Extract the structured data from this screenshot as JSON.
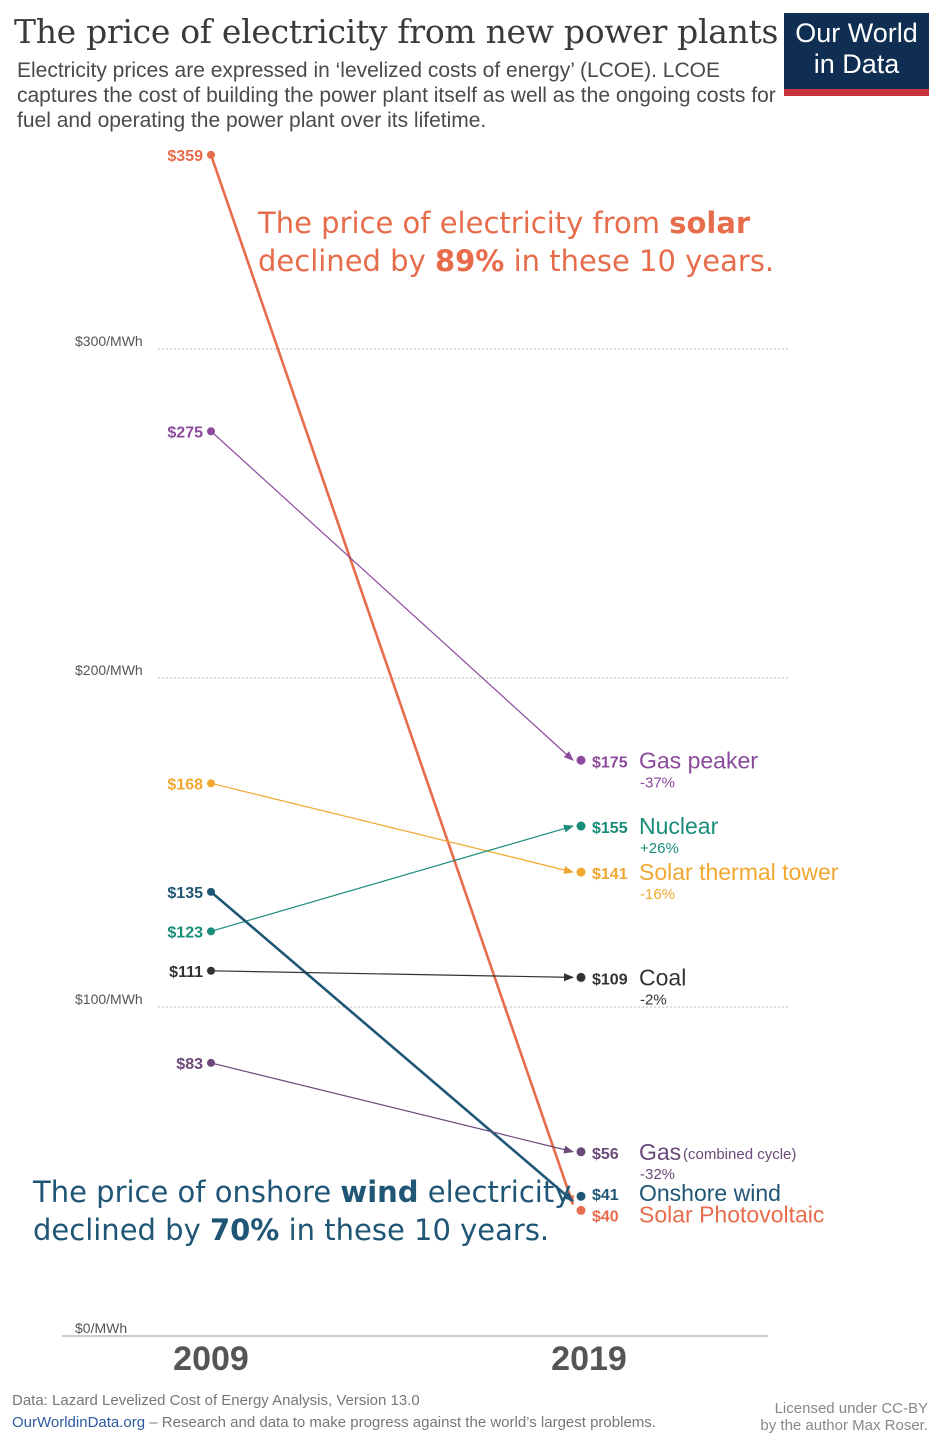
{
  "header": {
    "title": "The price of electricity from new power plants",
    "subtitle": "Electricity prices are expressed in ‘levelized costs of energy’ (LCOE). LCOE captures the cost of building the power plant itself as well as the ongoing costs for fuel and operating the power plant over its lifetime.",
    "logo_line1": "Our World",
    "logo_line2": "in Data"
  },
  "annotations": {
    "solar": {
      "pre": "The price of electricity from ",
      "bold1": "solar",
      "mid": "declined by ",
      "bold2": "89%",
      "post": " in these 10 years."
    },
    "wind": {
      "pre": "The price of onshore ",
      "bold1": "wind",
      "mid1": " electricity",
      "mid": "declined by ",
      "bold2": "70%",
      "post": " in these 10 years."
    }
  },
  "footer": {
    "source": "Data: Lazard Levelized Cost of Energy Analysis, Version 13.0",
    "site": "OurWorldinData.org",
    "tagline": " – Research and data to make progress against the world’s largest problems.",
    "license_line1": "Licensed under CC-BY",
    "license_line2": "by the author Max Roser."
  },
  "colors": {
    "solar_pv": "#e76c4b",
    "gas_peaker": "#8b4a9c",
    "solar_thermal": "#f0a830",
    "nuclear": "#1a8c7a",
    "onshore_wind": "#1f5675",
    "coal": "#333333",
    "gas_cc": "#6b4a7a"
  },
  "chart_data": {
    "type": "slope",
    "unit": "$/MWh",
    "x_labels": [
      "2009",
      "2019"
    ],
    "y_ticks": [
      {
        "value": 0,
        "label": "$0/MWh"
      },
      {
        "value": 100,
        "label": "$100/MWh"
      },
      {
        "value": 200,
        "label": "$200/MWh"
      },
      {
        "value": 300,
        "label": "$300/MWh"
      }
    ],
    "ylim": [
      0,
      359
    ],
    "series": [
      {
        "key": "solar_pv",
        "name": "Solar Photovoltaic",
        "start": 359,
        "end": 40,
        "start_label": "$359",
        "end_label": "$40",
        "change": "",
        "color": "#e76c4b",
        "width": 2.6
      },
      {
        "key": "gas_peaker",
        "name": "Gas peaker",
        "start": 275,
        "end": 175,
        "start_label": "$275",
        "end_label": "$175",
        "change": "-37%",
        "color": "#8b4a9c",
        "width": 1.2
      },
      {
        "key": "solar_thermal",
        "name": "Solar thermal tower",
        "start": 168,
        "end": 141,
        "start_label": "$168",
        "end_label": "$141",
        "change": "-16%",
        "color": "#f0a830",
        "width": 1.2
      },
      {
        "key": "nuclear",
        "name": "Nuclear",
        "start": 123,
        "end": 155,
        "start_label": "$123",
        "end_label": "$155",
        "change": "+26%",
        "color": "#1a8c7a",
        "width": 1.2
      },
      {
        "key": "onshore_wind",
        "name": "Onshore wind",
        "start": 135,
        "end": 41,
        "start_label": "$135",
        "end_label": "$41",
        "change": "",
        "color": "#1f5675",
        "width": 2.6
      },
      {
        "key": "coal",
        "name": "Coal",
        "start": 111,
        "end": 109,
        "start_label": "$111",
        "end_label": "$109",
        "change": "-2%",
        "color": "#333333",
        "width": 1.2
      },
      {
        "key": "gas_cc",
        "name": "Gas",
        "name_suffix": "(combined cycle)",
        "start": 83,
        "end": 56,
        "start_label": "$83",
        "end_label": "$56",
        "change": "-32%",
        "color": "#6b4a7a",
        "width": 1.2
      }
    ]
  }
}
